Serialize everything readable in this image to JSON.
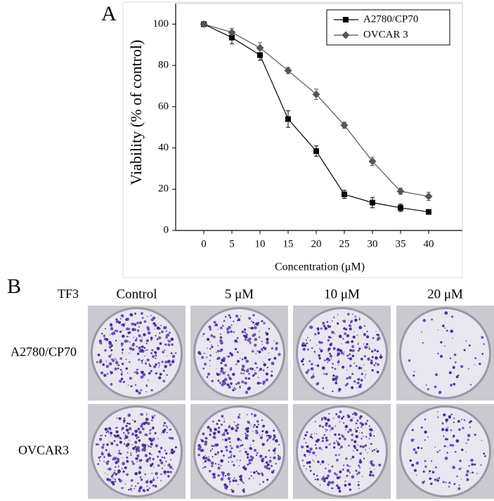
{
  "chart_data": {
    "type": "line",
    "x_label": "Concentration (μM)",
    "y_label": "Viability (% of control)",
    "x": [
      0,
      5,
      10,
      15,
      20,
      25,
      30,
      35,
      40
    ],
    "series": [
      {
        "name": "A2780/CP70",
        "color": "#000000",
        "marker": "square",
        "values": [
          100,
          93.5,
          85,
          54,
          38.5,
          17.5,
          13.5,
          11,
          9
        ],
        "errors": [
          1,
          3,
          2.5,
          4,
          2.5,
          2,
          2.5,
          1.8,
          1
        ]
      },
      {
        "name": "OVCAR 3",
        "color": "#555555",
        "marker": "diamond",
        "values": [
          100,
          96,
          88.5,
          77.5,
          66,
          51,
          33.5,
          19,
          16.5
        ],
        "errors": [
          1,
          2,
          2.5,
          1.5,
          2.5,
          1.5,
          2,
          1.5,
          2
        ]
      }
    ],
    "xlim": [
      -5,
      46
    ],
    "xticks": [
      0,
      5,
      10,
      15,
      20,
      25,
      30,
      35,
      40
    ],
    "ylim": [
      0,
      110
    ],
    "yticks": [
      0,
      20,
      40,
      60,
      80,
      100
    ],
    "legend": "upper-right",
    "grid": false
  },
  "panel_labels": [
    "A",
    "B"
  ],
  "panel_b": {
    "treatment": "TF3",
    "columns": [
      "Control",
      "5 μM",
      "10 μM",
      "20 μM"
    ],
    "rows": [
      "A2780/CP70",
      "OVCAR3"
    ]
  }
}
